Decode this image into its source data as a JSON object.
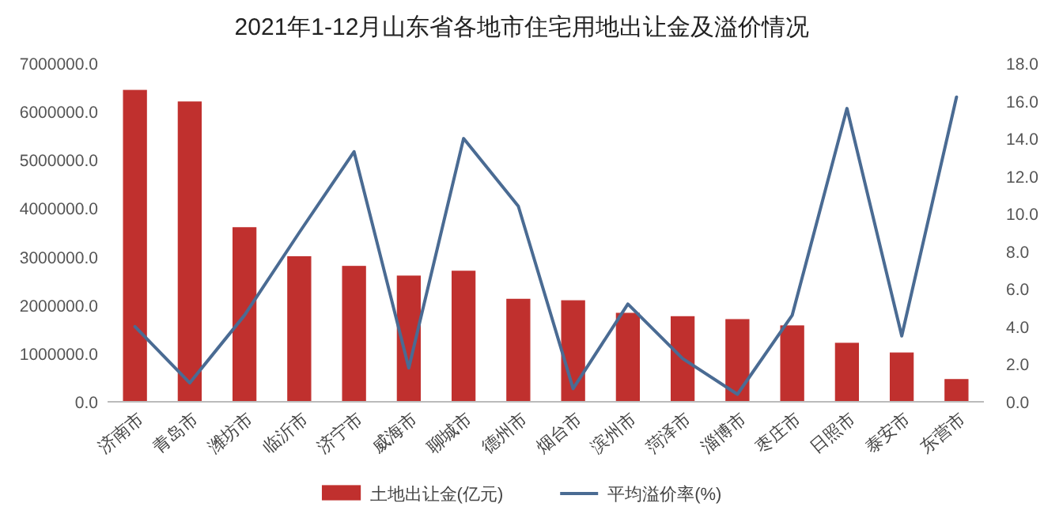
{
  "chart_data": {
    "type": "bar",
    "title": "2021年1-12月山东省各地市住宅用地出让金及溢价情况",
    "categories": [
      "济南市",
      "青岛市",
      "潍坊市",
      "临沂市",
      "济宁市",
      "威海市",
      "聊城市",
      "德州市",
      "烟台市",
      "滨州市",
      "菏泽市",
      "淄博市",
      "枣庄市",
      "日照市",
      "泰安市",
      "东营市"
    ],
    "series": [
      {
        "name": "土地出让金(亿元)",
        "color": "#c0302e",
        "values": [
          6440000,
          6200000,
          3600000,
          3000000,
          2800000,
          2600000,
          2700000,
          2120000,
          2090000,
          1830000,
          1760000,
          1700000,
          1570000,
          1210000,
          1010000,
          460000
        ]
      },
      {
        "name": "平均溢价率(%)",
        "type": "line",
        "axis": "y2",
        "color": "#4a6b93",
        "values": [
          4.0,
          1.0,
          4.6,
          9.0,
          13.3,
          1.8,
          14.0,
          10.4,
          0.7,
          5.2,
          2.3,
          0.4,
          4.6,
          15.6,
          3.5,
          16.2
        ]
      }
    ],
    "ylim": [
      0,
      7000000
    ],
    "yticks": [
      {
        "value": 0,
        "label": "0.0"
      },
      {
        "value": 1000000,
        "label": "1000000.0"
      },
      {
        "value": 2000000,
        "label": "2000000.0"
      },
      {
        "value": 3000000,
        "label": "3000000.0"
      },
      {
        "value": 4000000,
        "label": "4000000.0"
      },
      {
        "value": 5000000,
        "label": "5000000.0"
      },
      {
        "value": 6000000,
        "label": "6000000.0"
      },
      {
        "value": 7000000,
        "label": "7000000.0"
      }
    ],
    "y2lim": [
      0,
      18
    ],
    "y2ticks": [
      {
        "value": 0,
        "label": "0.0"
      },
      {
        "value": 2,
        "label": "2.0"
      },
      {
        "value": 4,
        "label": "4.0"
      },
      {
        "value": 6,
        "label": "6.0"
      },
      {
        "value": 8,
        "label": "8.0"
      },
      {
        "value": 10,
        "label": "10.0"
      },
      {
        "value": 12,
        "label": "12.0"
      },
      {
        "value": 14,
        "label": "14.0"
      },
      {
        "value": 16,
        "label": "16.0"
      },
      {
        "value": 18,
        "label": "18.0"
      }
    ],
    "legend": "bottom"
  }
}
